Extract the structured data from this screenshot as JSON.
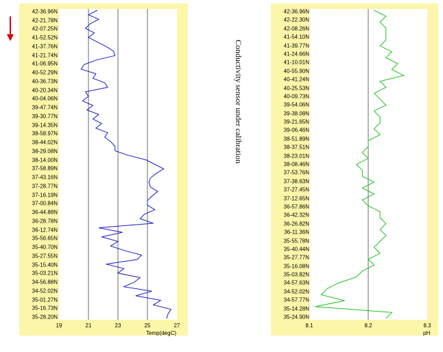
{
  "chart_data": [
    {
      "type": "line",
      "orientation": "vertical-profile",
      "title": "",
      "xlabel": "Temp(degC)",
      "ylabel": "",
      "xlim": [
        19,
        27
      ],
      "xticks": [
        "19",
        "21",
        "23",
        "25",
        "27"
      ],
      "grid": "vertical",
      "color": "#1a1ac8",
      "ylabels": [
        "42-36.96N",
        "42-21.78N",
        "42-07.25N",
        "41-52.52N",
        "41-37.76N",
        "41-21.74N",
        "41-06.95N",
        "40-52.29N",
        "40-36.73N",
        "40-20.34N",
        "40-04.06N",
        "39-47.74N",
        "39-30.77N",
        "39-14.35N",
        "38-58.97N",
        "38-44.02N",
        "38-29.08N",
        "38-14.00N",
        "37-58.89N",
        "37-43.16N",
        "37-28.77N",
        "37-16.19N",
        "37-00.84N",
        "36-44.88N",
        "36-28.78N",
        "36-12.74N",
        "35-56.65N",
        "35-40.70N",
        "35-27.55N",
        "35-15.40N",
        "35-03.21N",
        "34-56.88N",
        "34-52.02N",
        "35-01.27N",
        "35-16.73N",
        "35-28.20N"
      ],
      "series": [
        {
          "values": [
            21.6,
            21.0,
            21.7,
            21.1,
            20.8,
            21.4,
            21.0,
            21.6,
            22.2,
            22.7,
            22.8,
            21.5,
            20.7,
            20.5,
            21.5,
            21.3,
            22.1,
            22.3,
            20.8,
            21.0,
            20.6,
            21.3,
            20.9,
            21.7,
            21.3,
            21.9,
            21.5,
            22.3,
            22.1,
            22.5,
            22.8,
            22.8,
            23.7,
            24.9,
            25.5,
            26.1,
            25.6,
            25.2,
            25.1,
            25.2,
            25.7,
            25.3,
            25.0,
            25.0,
            25.5,
            24.8,
            24.5,
            25.4,
            21.7,
            23.3,
            21.9,
            23.0,
            22.5,
            23.4,
            24.6,
            24.3,
            22.2,
            23.4,
            23.0,
            24.5,
            24.1,
            23.4,
            25.3,
            24.2,
            25.9,
            25.4,
            26.6,
            26.4,
            26.3
          ]
        }
      ]
    },
    {
      "type": "line",
      "orientation": "vertical-profile",
      "title": "",
      "xlabel": "pH",
      "ylabel": "",
      "xlim": [
        8.1,
        8.3
      ],
      "xticks": [
        "8.1",
        "8.2",
        "8.3"
      ],
      "grid": "vertical",
      "color": "#1fbf1f",
      "ylabels": [
        "42-36.96N",
        "42-22.30N",
        "42-08.26N",
        "41-54.10N",
        "41-39.77N",
        "41-24.66N",
        "41-10.01N",
        "40-55.90N",
        "40-41.24N",
        "40-25.53N",
        "40-09.73N",
        "39-54.06N",
        "39-38.08N",
        "39-21.65N",
        "39-06.46N",
        "38-51.89N",
        "38-37.51N",
        "38-23.01N",
        "38-08.46N",
        "37-53.76N",
        "37-38.63N",
        "37-27.45N",
        "37-12.65N",
        "36-57.86N",
        "36-42.32N",
        "36-26.82N",
        "36-11.36N",
        "35-55.78N",
        "35-40.44N",
        "35-27.77N",
        "35-16.08N",
        "35-03.82N",
        "34-57.63N",
        "34-52.02N",
        "34-57.77N",
        "35-14.28N",
        "35-24.90N"
      ],
      "series": [
        {
          "values": [
            8.21,
            8.23,
            8.22,
            8.23,
            8.23,
            8.23,
            8.22,
            8.24,
            8.23,
            8.25,
            8.24,
            8.26,
            8.22,
            8.23,
            8.21,
            8.22,
            8.23,
            8.21,
            8.22,
            8.22,
            8.21,
            8.22,
            8.2,
            8.2,
            8.19,
            8.2,
            8.18,
            8.19,
            8.19,
            8.21,
            8.19,
            8.21,
            8.19,
            8.2,
            8.22,
            8.22,
            8.23,
            8.22,
            8.23,
            8.22,
            8.21,
            8.22,
            8.2,
            8.21,
            8.19,
            8.18,
            8.15,
            8.13,
            8.12,
            8.16,
            8.11,
            8.24,
            8.23
          ]
        }
      ]
    }
  ],
  "side_caption": "Conductivity sensor under calibration",
  "arrow_color": "#dd0000"
}
